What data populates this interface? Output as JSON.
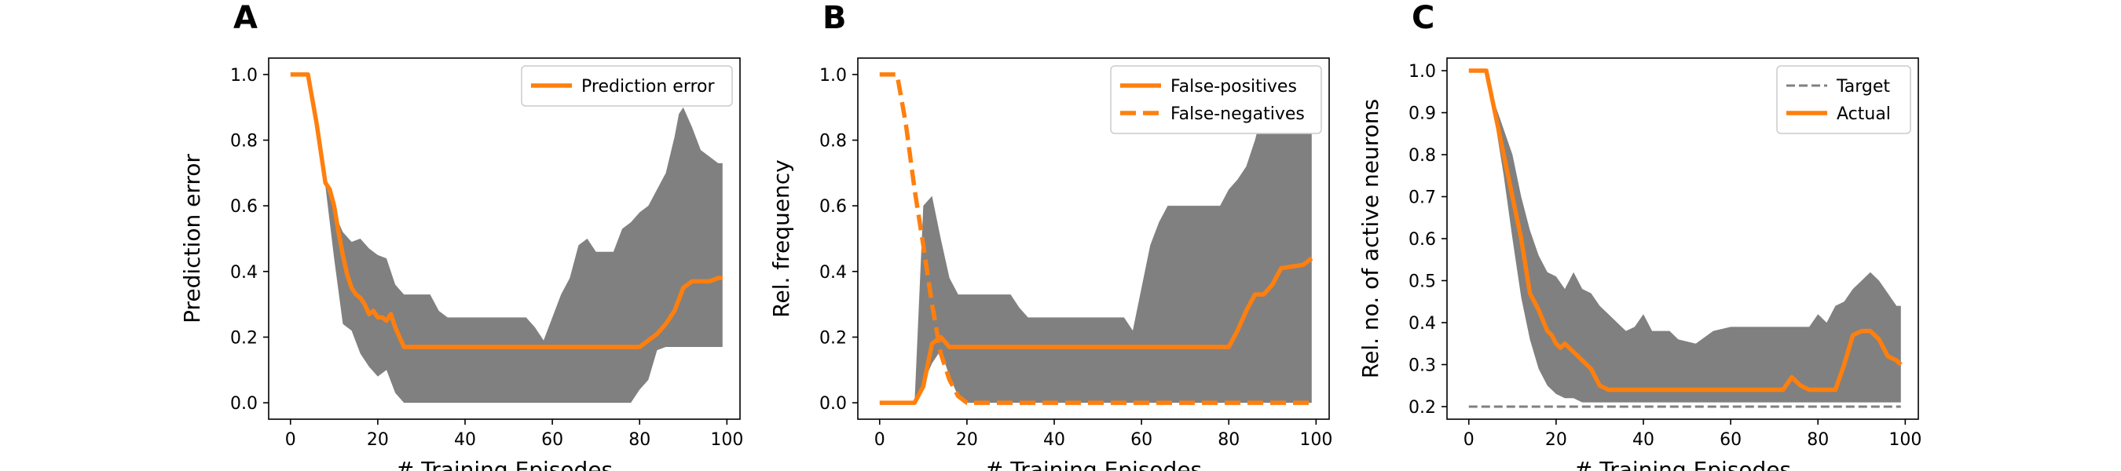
{
  "colors": {
    "band": "#808080",
    "line": "#ff7f0e",
    "target": "#808080",
    "axes": "#000000"
  },
  "chart_data": [
    {
      "type": "line",
      "panel_label": "A",
      "xlabel": "# Training Episodes",
      "ylabel": "Prediction error",
      "xlim": [
        -5,
        103
      ],
      "ylim": [
        -0.05,
        1.05
      ],
      "xticks": [
        0,
        20,
        40,
        60,
        80,
        100
      ],
      "xtick_labels": [
        "0",
        "20",
        "40",
        "60",
        "80",
        "100"
      ],
      "yticks": [
        0.0,
        0.2,
        0.4,
        0.6,
        0.8,
        1.0
      ],
      "ytick_labels": [
        "0.0",
        "0.2",
        "0.4",
        "0.6",
        "0.8",
        "1.0"
      ],
      "grid": false,
      "legend_position": "top-right",
      "bands": [
        {
          "upper": [
            [
              0,
              1.0
            ],
            [
              4,
              1.0
            ],
            [
              8,
              0.67
            ],
            [
              10,
              0.58
            ],
            [
              12,
              0.52
            ],
            [
              14,
              0.49
            ],
            [
              16,
              0.5
            ],
            [
              18,
              0.47
            ],
            [
              20,
              0.45
            ],
            [
              22,
              0.44
            ],
            [
              24,
              0.36
            ],
            [
              26,
              0.33
            ],
            [
              30,
              0.33
            ],
            [
              32,
              0.33
            ],
            [
              34,
              0.28
            ],
            [
              36,
              0.26
            ],
            [
              54,
              0.26
            ],
            [
              56,
              0.23
            ],
            [
              58,
              0.19
            ],
            [
              60,
              0.26
            ],
            [
              62,
              0.33
            ],
            [
              64,
              0.38
            ],
            [
              66,
              0.48
            ],
            [
              68,
              0.5
            ],
            [
              70,
              0.46
            ],
            [
              74,
              0.46
            ],
            [
              76,
              0.53
            ],
            [
              78,
              0.55
            ],
            [
              80,
              0.58
            ],
            [
              82,
              0.6
            ],
            [
              84,
              0.65
            ],
            [
              86,
              0.7
            ],
            [
              88,
              0.81
            ],
            [
              89,
              0.88
            ],
            [
              90,
              0.9
            ],
            [
              92,
              0.84
            ],
            [
              94,
              0.77
            ],
            [
              96,
              0.75
            ],
            [
              98,
              0.73
            ],
            [
              99,
              0.73
            ]
          ],
          "lower": [
            [
              0,
              1.0
            ],
            [
              4,
              1.0
            ],
            [
              8,
              0.66
            ],
            [
              10,
              0.44
            ],
            [
              12,
              0.24
            ],
            [
              14,
              0.22
            ],
            [
              16,
              0.15
            ],
            [
              18,
              0.11
            ],
            [
              20,
              0.08
            ],
            [
              22,
              0.1
            ],
            [
              24,
              0.03
            ],
            [
              26,
              0.0
            ],
            [
              78,
              0.0
            ],
            [
              80,
              0.04
            ],
            [
              82,
              0.07
            ],
            [
              84,
              0.16
            ],
            [
              86,
              0.17
            ],
            [
              99,
              0.17
            ]
          ]
        }
      ],
      "series": [
        {
          "name": "Prediction error",
          "style": "solid",
          "points": [
            [
              0,
              1.0
            ],
            [
              4,
              1.0
            ],
            [
              6,
              0.85
            ],
            [
              8,
              0.67
            ],
            [
              9,
              0.65
            ],
            [
              10,
              0.6
            ],
            [
              11,
              0.52
            ],
            [
              12,
              0.45
            ],
            [
              13,
              0.39
            ],
            [
              14,
              0.35
            ],
            [
              15,
              0.33
            ],
            [
              16,
              0.32
            ],
            [
              17,
              0.3
            ],
            [
              18,
              0.27
            ],
            [
              19,
              0.28
            ],
            [
              20,
              0.26
            ],
            [
              21,
              0.26
            ],
            [
              22,
              0.25
            ],
            [
              23,
              0.27
            ],
            [
              24,
              0.23
            ],
            [
              25,
              0.2
            ],
            [
              26,
              0.17
            ],
            [
              80,
              0.17
            ],
            [
              82,
              0.19
            ],
            [
              84,
              0.21
            ],
            [
              86,
              0.24
            ],
            [
              88,
              0.28
            ],
            [
              90,
              0.35
            ],
            [
              92,
              0.37
            ],
            [
              96,
              0.37
            ],
            [
              98,
              0.38
            ],
            [
              99,
              0.38
            ]
          ]
        }
      ]
    },
    {
      "type": "line",
      "panel_label": "B",
      "xlabel": "# Training Episodes",
      "ylabel": "Rel. frequency",
      "xlim": [
        -5,
        103
      ],
      "ylim": [
        -0.05,
        1.05
      ],
      "xticks": [
        0,
        20,
        40,
        60,
        80,
        100
      ],
      "xtick_labels": [
        "0",
        "20",
        "40",
        "60",
        "80",
        "100"
      ],
      "yticks": [
        0.0,
        0.2,
        0.4,
        0.6,
        0.8,
        1.0
      ],
      "ytick_labels": [
        "0.0",
        "0.2",
        "0.4",
        "0.6",
        "0.8",
        "1.0"
      ],
      "grid": false,
      "legend_position": "top-right",
      "bands": [
        {
          "upper": [
            [
              0,
              0.0
            ],
            [
              8,
              0.0
            ],
            [
              10,
              0.6
            ],
            [
              12,
              0.63
            ],
            [
              14,
              0.5
            ],
            [
              16,
              0.38
            ],
            [
              18,
              0.33
            ],
            [
              30,
              0.33
            ],
            [
              32,
              0.29
            ],
            [
              34,
              0.26
            ],
            [
              56,
              0.26
            ],
            [
              58,
              0.22
            ],
            [
              60,
              0.35
            ],
            [
              62,
              0.48
            ],
            [
              64,
              0.55
            ],
            [
              66,
              0.6
            ],
            [
              78,
              0.6
            ],
            [
              80,
              0.65
            ],
            [
              82,
              0.68
            ],
            [
              84,
              0.72
            ],
            [
              86,
              0.8
            ],
            [
              88,
              0.9
            ],
            [
              90,
              0.88
            ],
            [
              92,
              0.83
            ],
            [
              99,
              0.83
            ]
          ],
          "lower": [
            [
              0,
              0.0
            ],
            [
              8,
              0.0
            ],
            [
              10,
              0.06
            ],
            [
              12,
              0.12
            ],
            [
              14,
              0.16
            ],
            [
              16,
              0.08
            ],
            [
              18,
              0.02
            ],
            [
              20,
              0.0
            ],
            [
              99,
              0.0
            ]
          ]
        }
      ],
      "series": [
        {
          "name": "False-positives",
          "style": "solid",
          "points": [
            [
              0,
              0.0
            ],
            [
              8,
              0.0
            ],
            [
              10,
              0.05
            ],
            [
              12,
              0.18
            ],
            [
              13,
              0.19
            ],
            [
              14,
              0.2
            ],
            [
              16,
              0.17
            ],
            [
              80,
              0.17
            ],
            [
              82,
              0.22
            ],
            [
              84,
              0.28
            ],
            [
              86,
              0.33
            ],
            [
              88,
              0.33
            ],
            [
              90,
              0.36
            ],
            [
              92,
              0.41
            ],
            [
              97,
              0.42
            ],
            [
              98,
              0.43
            ],
            [
              99,
              0.44
            ]
          ]
        },
        {
          "name": "False-negatives",
          "style": "dashed",
          "points": [
            [
              0,
              1.0
            ],
            [
              4,
              1.0
            ],
            [
              6,
              0.85
            ],
            [
              8,
              0.65
            ],
            [
              10,
              0.48
            ],
            [
              12,
              0.3
            ],
            [
              14,
              0.15
            ],
            [
              16,
              0.07
            ],
            [
              18,
              0.02
            ],
            [
              20,
              0.0
            ],
            [
              99,
              0.0
            ]
          ]
        }
      ]
    },
    {
      "type": "line",
      "panel_label": "C",
      "xlabel": "# Training Episodes",
      "ylabel": "Rel. no. of active neurons",
      "xlim": [
        -5,
        103
      ],
      "ylim": [
        0.17,
        1.03
      ],
      "xticks": [
        0,
        20,
        40,
        60,
        80,
        100
      ],
      "xtick_labels": [
        "0",
        "20",
        "40",
        "60",
        "80",
        "100"
      ],
      "yticks": [
        0.2,
        0.3,
        0.4,
        0.5,
        0.6,
        0.7,
        0.8,
        0.9,
        1.0
      ],
      "ytick_labels": [
        "0.2",
        "0.3",
        "0.4",
        "0.5",
        "0.6",
        "0.7",
        "0.8",
        "0.9",
        "1.0"
      ],
      "grid": false,
      "legend_position": "top-right",
      "bands": [
        {
          "upper": [
            [
              0,
              1.0
            ],
            [
              4,
              1.0
            ],
            [
              6,
              0.92
            ],
            [
              8,
              0.86
            ],
            [
              10,
              0.8
            ],
            [
              12,
              0.7
            ],
            [
              14,
              0.62
            ],
            [
              16,
              0.56
            ],
            [
              18,
              0.52
            ],
            [
              20,
              0.51
            ],
            [
              22,
              0.48
            ],
            [
              24,
              0.52
            ],
            [
              26,
              0.48
            ],
            [
              28,
              0.47
            ],
            [
              30,
              0.44
            ],
            [
              32,
              0.42
            ],
            [
              34,
              0.4
            ],
            [
              36,
              0.38
            ],
            [
              38,
              0.39
            ],
            [
              40,
              0.42
            ],
            [
              42,
              0.38
            ],
            [
              46,
              0.38
            ],
            [
              48,
              0.36
            ],
            [
              52,
              0.35
            ],
            [
              56,
              0.38
            ],
            [
              60,
              0.39
            ],
            [
              78,
              0.39
            ],
            [
              80,
              0.42
            ],
            [
              82,
              0.4
            ],
            [
              84,
              0.44
            ],
            [
              86,
              0.45
            ],
            [
              88,
              0.48
            ],
            [
              90,
              0.5
            ],
            [
              92,
              0.52
            ],
            [
              94,
              0.5
            ],
            [
              96,
              0.47
            ],
            [
              98,
              0.44
            ],
            [
              99,
              0.44
            ]
          ],
          "lower": [
            [
              0,
              1.0
            ],
            [
              4,
              1.0
            ],
            [
              6,
              0.88
            ],
            [
              8,
              0.75
            ],
            [
              10,
              0.6
            ],
            [
              12,
              0.46
            ],
            [
              14,
              0.36
            ],
            [
              16,
              0.29
            ],
            [
              18,
              0.25
            ],
            [
              20,
              0.23
            ],
            [
              22,
              0.22
            ],
            [
              24,
              0.22
            ],
            [
              26,
              0.21
            ],
            [
              99,
              0.21
            ]
          ]
        }
      ],
      "series": [
        {
          "name": "Target",
          "style": "dashed-thin",
          "points": [
            [
              0,
              0.2
            ],
            [
              99,
              0.2
            ]
          ]
        },
        {
          "name": "Actual",
          "style": "solid",
          "points": [
            [
              0,
              1.0
            ],
            [
              4,
              1.0
            ],
            [
              6,
              0.9
            ],
            [
              8,
              0.8
            ],
            [
              10,
              0.7
            ],
            [
              12,
              0.6
            ],
            [
              14,
              0.47
            ],
            [
              15,
              0.45
            ],
            [
              16,
              0.43
            ],
            [
              18,
              0.38
            ],
            [
              19,
              0.37
            ],
            [
              20,
              0.35
            ],
            [
              21,
              0.34
            ],
            [
              22,
              0.35
            ],
            [
              24,
              0.33
            ],
            [
              26,
              0.31
            ],
            [
              28,
              0.29
            ],
            [
              30,
              0.25
            ],
            [
              32,
              0.24
            ],
            [
              34,
              0.24
            ],
            [
              58,
              0.24
            ],
            [
              60,
              0.24
            ],
            [
              72,
              0.24
            ],
            [
              74,
              0.27
            ],
            [
              76,
              0.25
            ],
            [
              78,
              0.24
            ],
            [
              84,
              0.24
            ],
            [
              86,
              0.3
            ],
            [
              88,
              0.37
            ],
            [
              90,
              0.38
            ],
            [
              92,
              0.38
            ],
            [
              94,
              0.36
            ],
            [
              96,
              0.32
            ],
            [
              98,
              0.31
            ],
            [
              99,
              0.3
            ]
          ]
        }
      ]
    }
  ]
}
